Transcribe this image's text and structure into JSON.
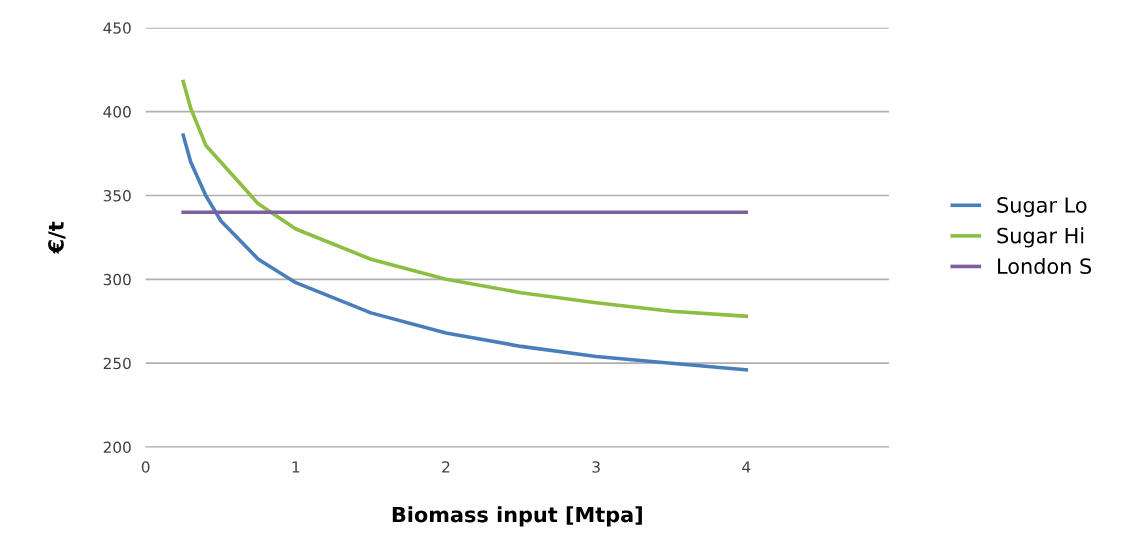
{
  "chart_data": {
    "type": "line",
    "xlabel": "Biomass input [Mtpa]",
    "ylabel": "€/t",
    "xlim": [
      0,
      4.95
    ],
    "xticks": [
      0,
      1,
      2,
      3,
      4
    ],
    "ylim": [
      200,
      450
    ],
    "yticks": [
      200,
      250,
      300,
      350,
      400,
      450
    ],
    "grid": "y",
    "legend": "right",
    "marker": "none",
    "line_style": "solid",
    "series": [
      {
        "name": "Sugar Lo",
        "color": "#4a7ebb",
        "x": [
          0.25,
          0.3,
          0.4,
          0.5,
          0.75,
          1,
          1.5,
          2,
          2.5,
          3,
          3.5,
          4
        ],
        "values": [
          386,
          370,
          350,
          335,
          312,
          298,
          280,
          268,
          260,
          254,
          250,
          246
        ]
      },
      {
        "name": "Sugar Hi",
        "color": "#8cbe43",
        "x": [
          0.25,
          0.3,
          0.4,
          0.5,
          0.75,
          1,
          1.5,
          2,
          2.5,
          3,
          3.5,
          4
        ],
        "values": [
          418,
          402,
          380,
          370,
          345,
          330,
          312,
          300,
          292,
          286,
          281,
          278
        ]
      },
      {
        "name": "London S",
        "color": "#7d5fa0",
        "x": [
          0.25,
          4
        ],
        "values": [
          340,
          340
        ]
      }
    ]
  }
}
